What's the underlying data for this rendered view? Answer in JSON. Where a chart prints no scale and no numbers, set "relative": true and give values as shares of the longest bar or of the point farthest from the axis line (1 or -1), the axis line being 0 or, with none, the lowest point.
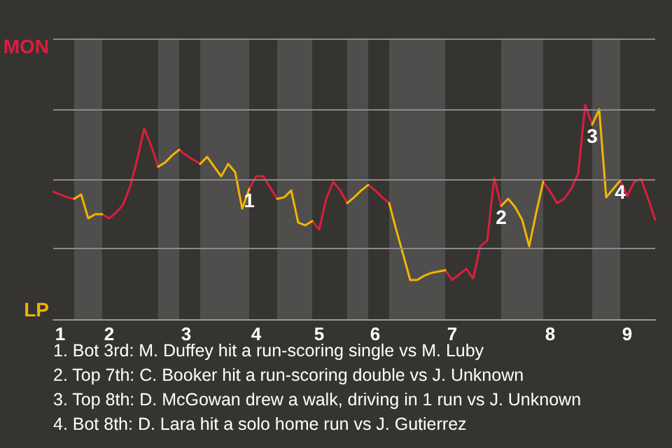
{
  "chart_data": {
    "type": "line",
    "relative": true,
    "categories": [
      null,
      "1",
      null,
      null,
      null,
      null,
      null,
      null,
      "2",
      null,
      null,
      null,
      null,
      null,
      null,
      null,
      null,
      null,
      null,
      "3",
      null,
      null,
      null,
      null,
      null,
      null,
      null,
      null,
      null,
      "4",
      null,
      null,
      null,
      null,
      null,
      null,
      null,
      null,
      "5",
      null,
      null,
      null,
      null,
      null,
      null,
      null,
      "6",
      null,
      null,
      null,
      null,
      null,
      null,
      null,
      null,
      null,
      null,
      "7",
      null,
      null,
      null,
      null,
      null,
      null,
      null,
      null,
      null,
      null,
      null,
      null,
      null,
      "8",
      null,
      null,
      null,
      null,
      null,
      null,
      null,
      null,
      null,
      null,
      "9",
      null,
      null,
      null,
      null
    ],
    "series": [
      {
        "name": "MON",
        "color": "#dc1e3c",
        "values": [
          0.595,
          0.582,
          0.569,
          0.562,
          null,
          null,
          null,
          0.49,
          0.471,
          0.497,
          0.536,
          0.621,
          0.745,
          0.889,
          0.81,
          0.712,
          null,
          null,
          0.791,
          0.765,
          0.745,
          0.725,
          null,
          null,
          null,
          null,
          null,
          null,
          0.608,
          0.667,
          0.667,
          0.614,
          0.562,
          null,
          null,
          null,
          null,
          0.458,
          0.418,
          0.562,
          0.641,
          0.601,
          0.542,
          null,
          null,
          0.627,
          0.601,
          0.569,
          0.542,
          null,
          null,
          null,
          null,
          null,
          null,
          null,
          0.229,
          0.183,
          0.209,
          0.235,
          0.19,
          0.34,
          0.366,
          0.66,
          0.529,
          null,
          null,
          null,
          null,
          null,
          0.641,
          0.595,
          0.542,
          0.562,
          0.608,
          0.68,
          1,
          0.908,
          null,
          null,
          null,
          0.647,
          0.575,
          0.641,
          0.654,
          0.562,
          0.464
        ]
      },
      {
        "name": "LP",
        "color": "#f5b400",
        "values": [
          null,
          null,
          null,
          0.562,
          0.582,
          0.471,
          0.49,
          0.49,
          null,
          null,
          null,
          null,
          null,
          null,
          null,
          0.712,
          0.732,
          0.765,
          0.791,
          null,
          null,
          0.725,
          0.758,
          0.712,
          0.667,
          0.725,
          0.686,
          0.516,
          0.608,
          null,
          null,
          null,
          0.562,
          0.569,
          0.601,
          0.451,
          0.438,
          0.458,
          null,
          null,
          null,
          null,
          0.542,
          0.569,
          0.601,
          0.627,
          null,
          null,
          0.542,
          0.418,
          0.301,
          0.183,
          0.183,
          0.203,
          0.216,
          0.222,
          0.229,
          null,
          null,
          null,
          null,
          null,
          null,
          null,
          0.529,
          0.562,
          0.523,
          0.464,
          0.34,
          0.497,
          0.641,
          null,
          null,
          null,
          null,
          null,
          null,
          0.908,
          0.98,
          0.569,
          0.608,
          0.647,
          null,
          null,
          null,
          null,
          null
        ]
      }
    ],
    "legend": "left",
    "ref_lines": [
      {
        "axis": "y",
        "value": 0.327,
        "color": "#8a8a8a"
      },
      {
        "axis": "y",
        "value": 0.654,
        "color": "#8a8a8a"
      },
      {
        "axis": "y",
        "value": 0.98,
        "color": "#8a8a8a"
      },
      {
        "axis": "y",
        "value": 1.307,
        "color": "#8a8a8a"
      }
    ],
    "annotations": [
      {
        "text": "1",
        "y": 0.608
      },
      {
        "text": "2",
        "y": 0.529
      },
      {
        "text": "3",
        "y": 0.908
      },
      {
        "text": "4",
        "y": 0.647
      },
      "1. Bot 3rd: M. Duffey hit a run-scoring single vs M. Luby",
      "2. Top 7th: C. Booker hit a run-scoring double vs J. Unknown",
      "3. Top 8th: D. McGowan drew a walk, driving in 1 run vs J. Unknown",
      "4. Bot 8th: D. Lara hit a solo home run vs J. Gutierrez"
    ]
  }
}
